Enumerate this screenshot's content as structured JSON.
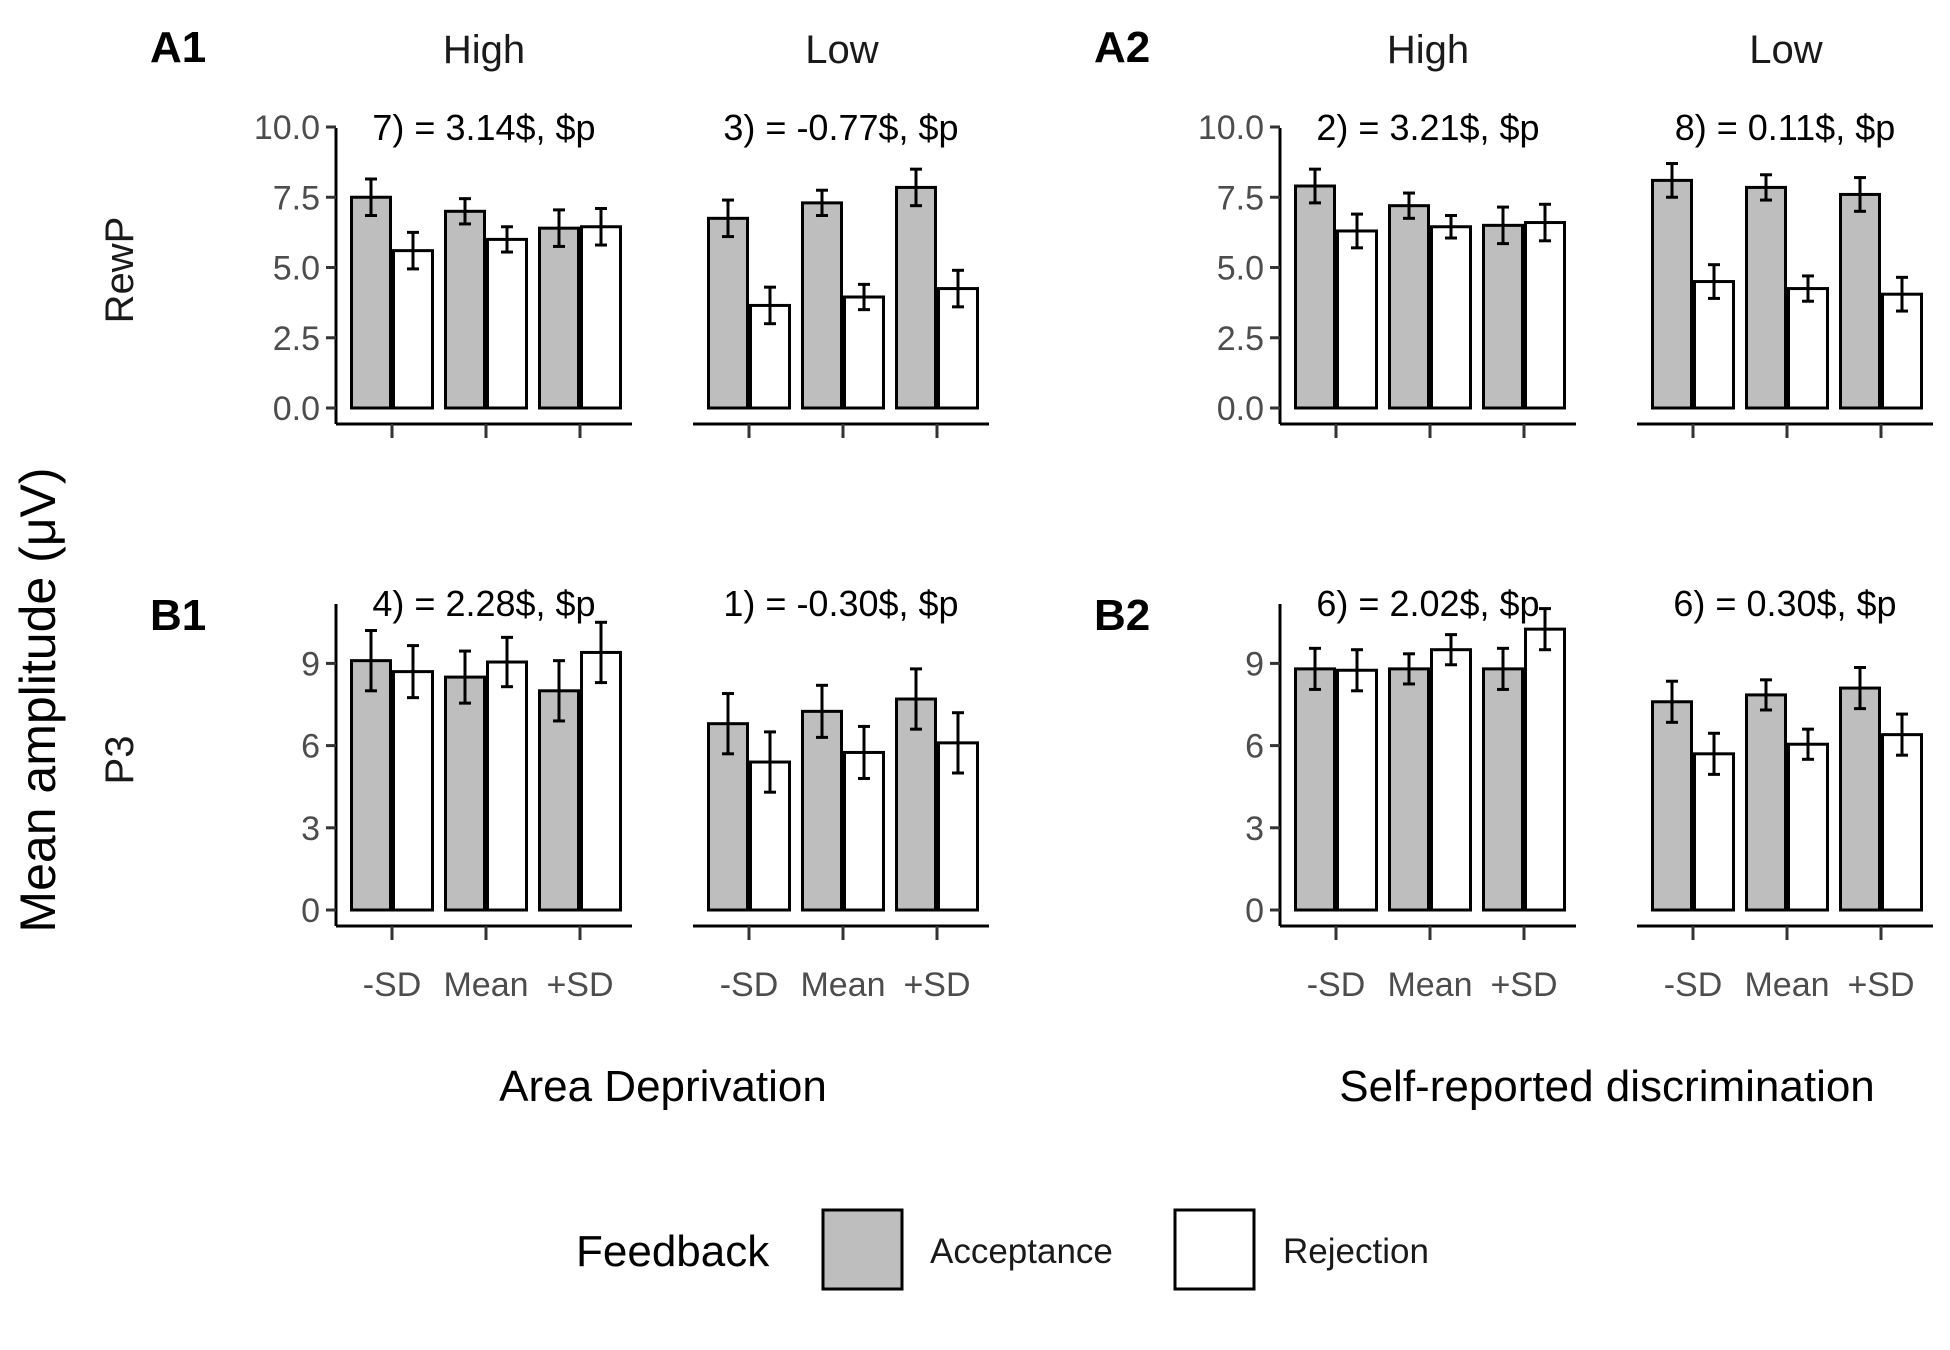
{
  "colors": {
    "acceptance": "#bebebe",
    "rejection": "#ffffff",
    "stroke": "#000000"
  },
  "figure": {
    "y_title": "Mean amplitude (μV)",
    "x_titles": [
      "Area Deprivation",
      "Self-reported discrimination"
    ],
    "panels": {
      "A1": "A1",
      "A2": "A2",
      "B1": "B1",
      "B2": "B2"
    },
    "strips": {
      "high": "High",
      "low": "Low"
    },
    "rows": {
      "rewp": "RewP",
      "p3": "P3"
    },
    "legend": {
      "title": "Feedback",
      "acceptance": "Acceptance",
      "rejection": "Rejection"
    }
  },
  "chart_data": [
    {
      "type": "bar",
      "panel": "A1",
      "row": "RewP",
      "column": "Area Deprivation",
      "categories": [
        "-SD",
        "Mean",
        "+SD"
      ],
      "ylim": [
        0,
        10.5
      ],
      "yticks": [
        "0.0",
        "2.5",
        "5.0",
        "7.5",
        "10.0"
      ],
      "grid": false,
      "legend_placement": "bottom",
      "facets": [
        {
          "name": "High",
          "annotation": "7) = 3.14$, $p",
          "series": [
            {
              "name": "Acceptance",
              "values": [
                7.5,
                7.0,
                6.4
              ],
              "errors": [
                0.65,
                0.45,
                0.65
              ]
            },
            {
              "name": "Rejection",
              "values": [
                5.6,
                6.0,
                6.45
              ],
              "errors": [
                0.65,
                0.45,
                0.65
              ]
            }
          ]
        },
        {
          "name": "Low",
          "annotation": "3) = -0.77$, $p",
          "series": [
            {
              "name": "Acceptance",
              "values": [
                6.75,
                7.3,
                7.85
              ],
              "errors": [
                0.65,
                0.45,
                0.65
              ]
            },
            {
              "name": "Rejection",
              "values": [
                3.65,
                3.95,
                4.25
              ],
              "errors": [
                0.65,
                0.45,
                0.65
              ]
            }
          ]
        }
      ]
    },
    {
      "type": "bar",
      "panel": "A2",
      "row": "RewP",
      "column": "Self-reported discrimination",
      "categories": [
        "-SD",
        "Mean",
        "+SD"
      ],
      "ylim": [
        0,
        10.5
      ],
      "yticks": [
        "0.0",
        "2.5",
        "5.0",
        "7.5",
        "10.0"
      ],
      "grid": false,
      "legend_placement": "bottom",
      "facets": [
        {
          "name": "High",
          "annotation": "2) = 3.21$, $p",
          "series": [
            {
              "name": "Acceptance",
              "values": [
                7.9,
                7.2,
                6.5
              ],
              "errors": [
                0.6,
                0.45,
                0.65
              ]
            },
            {
              "name": "Rejection",
              "values": [
                6.3,
                6.45,
                6.6
              ],
              "errors": [
                0.6,
                0.4,
                0.65
              ]
            }
          ]
        },
        {
          "name": "Low",
          "annotation": "8) = 0.11$, $p",
          "series": [
            {
              "name": "Acceptance",
              "values": [
                8.1,
                7.85,
                7.6
              ],
              "errors": [
                0.6,
                0.45,
                0.6
              ]
            },
            {
              "name": "Rejection",
              "values": [
                4.5,
                4.25,
                4.05
              ],
              "errors": [
                0.6,
                0.45,
                0.6
              ]
            }
          ]
        }
      ]
    },
    {
      "type": "bar",
      "panel": "B1",
      "row": "P3",
      "column": "Area Deprivation",
      "categories": [
        "-SD",
        "Mean",
        "+SD"
      ],
      "ylim": [
        0,
        11.5
      ],
      "yticks": [
        "0",
        "3",
        "6",
        "9"
      ],
      "grid": false,
      "legend_placement": "bottom",
      "facets": [
        {
          "name": "High",
          "annotation": "4) = 2.28$, $p",
          "series": [
            {
              "name": "Acceptance",
              "values": [
                9.1,
                8.5,
                8.0
              ],
              "errors": [
                1.1,
                0.95,
                1.1
              ]
            },
            {
              "name": "Rejection",
              "values": [
                8.7,
                9.05,
                9.4
              ],
              "errors": [
                0.95,
                0.9,
                1.1
              ]
            }
          ]
        },
        {
          "name": "Low",
          "annotation": "1) = -0.30$, $p",
          "series": [
            {
              "name": "Acceptance",
              "values": [
                6.8,
                7.25,
                7.7
              ],
              "errors": [
                1.1,
                0.95,
                1.1
              ]
            },
            {
              "name": "Rejection",
              "values": [
                5.4,
                5.75,
                6.1
              ],
              "errors": [
                1.1,
                0.95,
                1.1
              ]
            }
          ]
        }
      ]
    },
    {
      "type": "bar",
      "panel": "B2",
      "row": "P3",
      "column": "Self-reported discrimination",
      "categories": [
        "-SD",
        "Mean",
        "+SD"
      ],
      "ylim": [
        0,
        11.5
      ],
      "yticks": [
        "0",
        "3",
        "6",
        "9"
      ],
      "grid": false,
      "legend_placement": "bottom",
      "facets": [
        {
          "name": "High",
          "annotation": "6) = 2.02$, $p",
          "series": [
            {
              "name": "Acceptance",
              "values": [
                8.8,
                8.8,
                8.8
              ],
              "errors": [
                0.75,
                0.55,
                0.75
              ]
            },
            {
              "name": "Rejection",
              "values": [
                8.75,
                9.5,
                10.25
              ],
              "errors": [
                0.75,
                0.55,
                0.75
              ]
            }
          ]
        },
        {
          "name": "Low",
          "annotation": "6) = 0.30$, $p",
          "series": [
            {
              "name": "Acceptance",
              "values": [
                7.6,
                7.85,
                8.1
              ],
              "errors": [
                0.75,
                0.55,
                0.75
              ]
            },
            {
              "name": "Rejection",
              "values": [
                5.7,
                6.05,
                6.4
              ],
              "errors": [
                0.75,
                0.55,
                0.75
              ]
            }
          ]
        }
      ]
    }
  ]
}
